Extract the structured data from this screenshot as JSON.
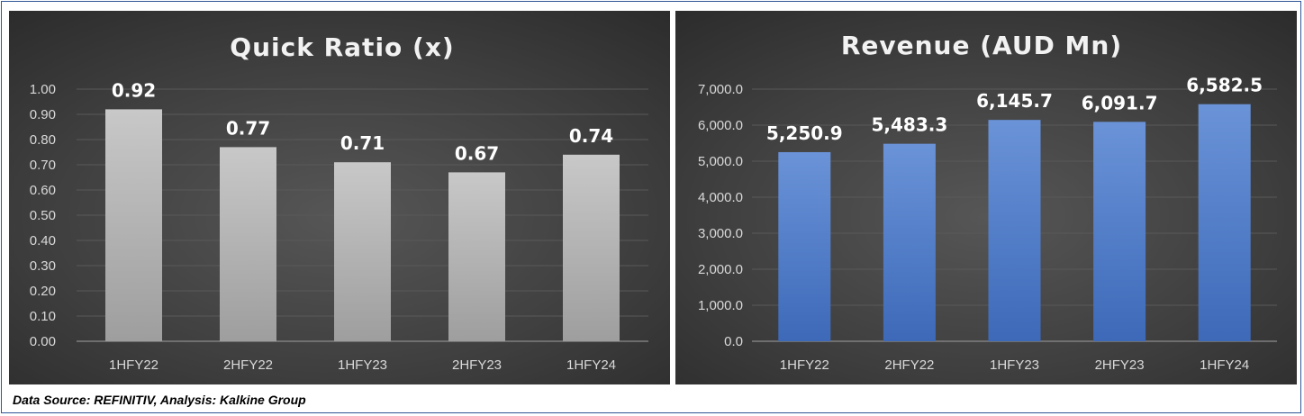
{
  "footer": {
    "source_note": "Data Source: REFINITIV, Analysis: Kalkine Group"
  },
  "chart_data": [
    {
      "type": "bar",
      "title": "Quick Ratio (x)",
      "categories": [
        "1HFY22",
        "2HFY22",
        "1HFY23",
        "2HFY23",
        "1HFY24"
      ],
      "values": [
        0.92,
        0.77,
        0.71,
        0.67,
        0.74
      ],
      "data_labels": [
        "0.92",
        "0.77",
        "0.71",
        "0.67",
        "0.74"
      ],
      "ylim": [
        0,
        1.0
      ],
      "yticks": [
        0,
        0.1,
        0.2,
        0.3,
        0.4,
        0.5,
        0.6,
        0.7,
        0.8,
        0.9,
        1.0
      ],
      "ytick_labels": [
        "0.00",
        "0.10",
        "0.20",
        "0.30",
        "0.40",
        "0.50",
        "0.60",
        "0.70",
        "0.80",
        "0.90",
        "1.00"
      ],
      "xlabel": "",
      "ylabel": "",
      "grid": true,
      "legend": false,
      "colors": {
        "bar_top": "#c8c8c8",
        "bar_bottom": "#9e9e9e"
      }
    },
    {
      "type": "bar",
      "title": "Revenue (AUD Mn)",
      "categories": [
        "1HFY22",
        "2HFY22",
        "1HFY23",
        "2HFY23",
        "1HFY24"
      ],
      "values": [
        5250.9,
        5483.3,
        6145.7,
        6091.7,
        6582.5
      ],
      "data_labels": [
        "5,250.9",
        "5,483.3",
        "6,145.7",
        "6,091.7",
        "6,582.5"
      ],
      "ylim": [
        0,
        7000
      ],
      "yticks": [
        0,
        1000,
        2000,
        3000,
        4000,
        5000,
        6000,
        7000
      ],
      "ytick_labels": [
        "0.0",
        "1,000.0",
        "2,000.0",
        "3,000.0",
        "4,000.0",
        "5,000.0",
        "6,000.0",
        "7,000.0"
      ],
      "xlabel": "",
      "ylabel": "",
      "grid": true,
      "legend": false,
      "colors": {
        "bar_top": "#6a93d8",
        "bar_bottom": "#3d69b8"
      }
    }
  ]
}
